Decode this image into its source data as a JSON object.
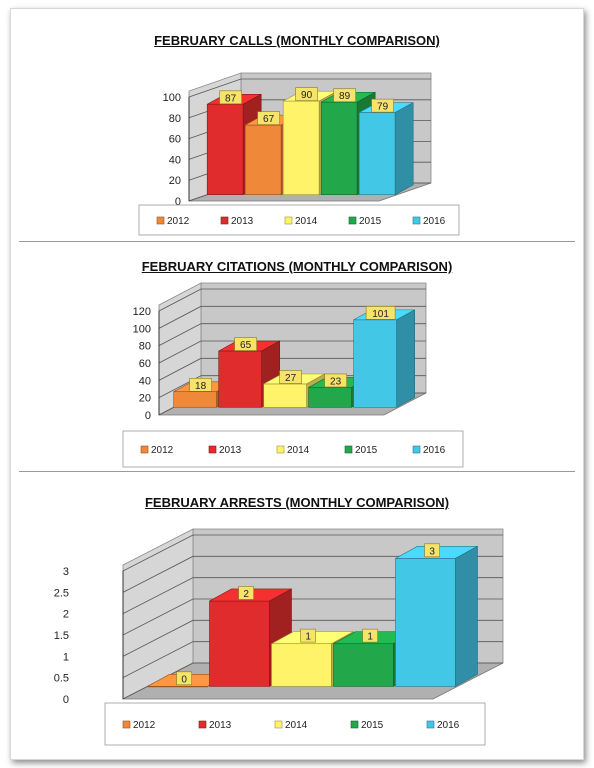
{
  "colors": {
    "2012": "#f0883a",
    "2013": "#e02c2c",
    "2014": "#fff36a",
    "2015": "#22a84a",
    "2016": "#42c7e6",
    "wall": "#c8c8c8",
    "floor": "#b0b0b0",
    "label_bg": "#f5e36a"
  },
  "chart_data": [
    {
      "type": "bar",
      "title": "FEBRUARY CALLS (MONTHLY COMPARISON)",
      "categories": [
        "2012",
        "2013",
        "2014",
        "2015",
        "2016"
      ],
      "values": [
        87,
        67,
        90,
        89,
        79
      ],
      "yticks": [
        0,
        20,
        40,
        60,
        80,
        100
      ],
      "ylim": [
        0,
        100
      ],
      "legend": [
        "2012",
        "2013",
        "2014",
        "2015",
        "2016"
      ],
      "legend_position": "bottom",
      "bar_colors": [
        "#e02c2c",
        "#f0883a",
        "#fff36a",
        "#22a84a",
        "#42c7e6"
      ]
    },
    {
      "type": "bar",
      "title": "FEBRUARY CITATIONS (MONTHLY COMPARISON)",
      "categories": [
        "2012",
        "2013",
        "2014",
        "2015",
        "2016"
      ],
      "values": [
        18,
        65,
        27,
        23,
        101
      ],
      "yticks": [
        0,
        20,
        40,
        60,
        80,
        100,
        120
      ],
      "ylim": [
        0,
        120
      ],
      "legend": [
        "2012",
        "2013",
        "2014",
        "2015",
        "2016"
      ],
      "legend_position": "bottom",
      "bar_colors": [
        "#f0883a",
        "#e02c2c",
        "#fff36a",
        "#22a84a",
        "#42c7e6"
      ]
    },
    {
      "type": "bar",
      "title": "FEBRUARY ARRESTS (MONTHLY COMPARISON)",
      "categories": [
        "2012",
        "2013",
        "2014",
        "2015",
        "2016"
      ],
      "values": [
        0,
        2,
        1,
        1,
        3
      ],
      "yticks": [
        0,
        0.5,
        1,
        1.5,
        2,
        2.5,
        3
      ],
      "ylim": [
        0,
        3
      ],
      "legend": [
        "2012",
        "2013",
        "2014",
        "2015",
        "2016"
      ],
      "legend_position": "bottom",
      "bar_colors": [
        "#f0883a",
        "#e02c2c",
        "#fff36a",
        "#22a84a",
        "#42c7e6"
      ]
    }
  ]
}
